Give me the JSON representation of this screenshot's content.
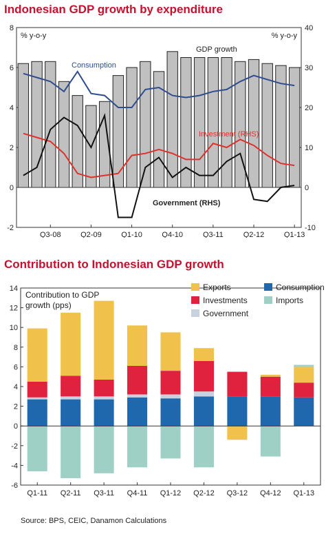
{
  "chart_data": [
    {
      "type": "bar+line",
      "title": "Indonesian GDP growth by expenditure",
      "y_left_label": "% y-o-y",
      "y_right_label": "% y-o-y",
      "ylim_left": [
        -2,
        8
      ],
      "ylim_right": [
        -10,
        40
      ],
      "y_left_ticks": [
        "-2",
        "0",
        "2",
        "4",
        "6",
        "8"
      ],
      "y_right_ticks": [
        "-10",
        "0",
        "10",
        "20",
        "30",
        "40"
      ],
      "x_tick_labels": [
        "Q3-08",
        "Q2-09",
        "Q1-10",
        "Q4-10",
        "Q3-11",
        "Q2-12",
        "Q1-13"
      ],
      "x": [
        "Q1-08",
        "Q2-08",
        "Q3-08",
        "Q4-08",
        "Q1-09",
        "Q2-09",
        "Q3-09",
        "Q4-09",
        "Q1-10",
        "Q2-10",
        "Q3-10",
        "Q4-10",
        "Q1-11",
        "Q2-11",
        "Q3-11",
        "Q4-11",
        "Q1-12",
        "Q2-12",
        "Q3-12",
        "Q4-12",
        "Q1-13"
      ],
      "series": [
        {
          "name": "GDP growth",
          "kind": "bar",
          "axis": "left",
          "color": "#c0c0c0",
          "values": [
            6.2,
            6.3,
            6.3,
            5.3,
            4.6,
            4.1,
            4.3,
            5.6,
            6.0,
            6.3,
            5.8,
            6.8,
            6.5,
            6.5,
            6.5,
            6.5,
            6.3,
            6.4,
            6.2,
            6.1,
            6.0
          ]
        },
        {
          "name": "Consumption",
          "kind": "line",
          "axis": "left",
          "color": "#2e4d8f",
          "values": [
            5.7,
            5.5,
            5.3,
            4.8,
            5.8,
            4.7,
            4.6,
            4.0,
            4.0,
            4.9,
            5.0,
            4.6,
            4.5,
            4.6,
            4.8,
            4.9,
            5.3,
            5.6,
            5.4,
            5.2,
            5.1
          ]
        },
        {
          "name": "Investment (RHS)",
          "kind": "line",
          "axis": "right",
          "color": "#e0312b",
          "values": [
            13.5,
            12.5,
            11.5,
            8.5,
            3.5,
            2.5,
            3.0,
            3.5,
            8.0,
            8.5,
            9.5,
            8.5,
            7.0,
            7.0,
            11.0,
            10.0,
            12.0,
            10.5,
            8.0,
            6.0,
            5.5
          ]
        },
        {
          "name": "Government (RHS)",
          "kind": "line",
          "axis": "right",
          "color": "#111111",
          "values": [
            3.0,
            5.0,
            14.5,
            17.5,
            15.5,
            10.0,
            18.0,
            -7.5,
            -7.5,
            5.0,
            7.5,
            2.5,
            5.0,
            3.0,
            3.0,
            6.5,
            8.5,
            -3.0,
            -3.5,
            0.0,
            0.5
          ]
        }
      ],
      "series_labels": {
        "gdp": "GDP growth",
        "consumption": "Consumption",
        "investment": "Investment (RHS)",
        "government": "Government (RHS)"
      }
    },
    {
      "type": "stacked-bar",
      "title": "Contribution to Indonesian GDP growth",
      "ylabel_line1": "Contribution to GDP",
      "ylabel_line2": "growth (pps)",
      "ylim": [
        -6,
        14
      ],
      "y_ticks": [
        "-6",
        "-4",
        "-2",
        "0",
        "2",
        "4",
        "6",
        "8",
        "10",
        "12",
        "14"
      ],
      "categories": [
        "Q1-11",
        "Q2-11",
        "Q3-11",
        "Q4-11",
        "Q1-12",
        "Q2-12",
        "Q3-12",
        "Q4-12",
        "Q1-13"
      ],
      "series": [
        {
          "name": "Consumption",
          "color": "#1f68ad",
          "values": [
            2.7,
            2.7,
            2.7,
            2.9,
            2.8,
            3.0,
            3.0,
            3.0,
            2.9
          ]
        },
        {
          "name": "Government",
          "color": "#c8d2de",
          "values": [
            0.2,
            0.3,
            0.3,
            0.3,
            0.4,
            0.5,
            0.0,
            0.0,
            0.0
          ]
        },
        {
          "name": "Investments",
          "color": "#e0223f",
          "values": [
            1.6,
            2.1,
            1.7,
            2.9,
            2.4,
            3.1,
            2.5,
            2.0,
            1.5
          ]
        },
        {
          "name": "Exports",
          "color": "#f0c24b",
          "values": [
            5.4,
            6.4,
            8.0,
            4.1,
            3.9,
            1.3,
            -1.4,
            0.2,
            1.6
          ]
        },
        {
          "name": "Imports",
          "color": "#9fd0c6",
          "values": [
            -4.6,
            -5.3,
            -4.8,
            -4.2,
            -3.3,
            -4.2,
            0.0,
            -3.1,
            0.2
          ]
        }
      ],
      "legend": [
        {
          "name": "Exports",
          "color": "#f0c24b"
        },
        {
          "name": "Consumption",
          "color": "#1f68ad"
        },
        {
          "name": "Investments",
          "color": "#e0223f"
        },
        {
          "name": "Imports",
          "color": "#9fd0c6"
        },
        {
          "name": "Government",
          "color": "#c8d2de"
        }
      ]
    }
  ],
  "source": "Source: BPS, CEIC, Danamon Calculations"
}
